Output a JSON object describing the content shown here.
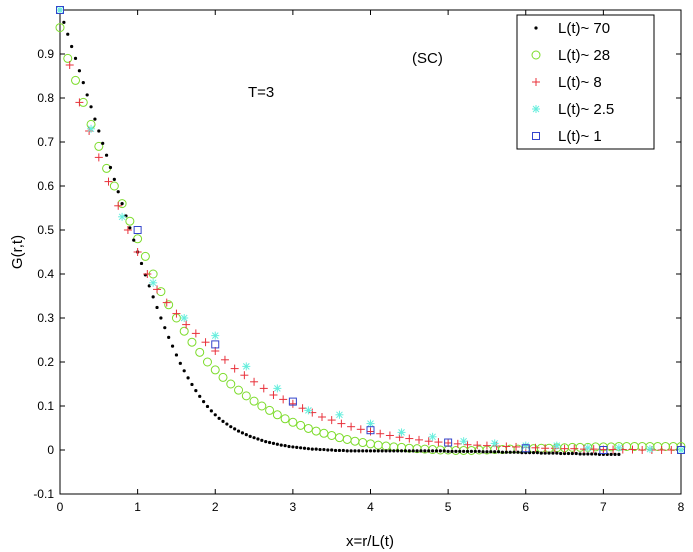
{
  "chart_data": {
    "type": "scatter",
    "xlabel": "x=r/L(t)",
    "ylabel": "G(r,t)",
    "xlim": [
      0,
      8
    ],
    "ylim": [
      -0.1,
      1
    ],
    "xticks": [
      "0",
      "1",
      "2",
      "3",
      "4",
      "5",
      "6",
      "7",
      "8"
    ],
    "yticks": [
      "-0.1",
      "0",
      "0.1",
      "0.2",
      "0.3",
      "0.4",
      "0.5",
      "0.6",
      "0.7",
      "0.8",
      "0.9"
    ],
    "annotations": [
      "T=3",
      "(SC)"
    ],
    "legend_position": "top-right",
    "series": [
      {
        "name": "L(t)~ 70",
        "marker": "dot",
        "color": "#000000",
        "x": [
          0,
          0.05,
          0.1,
          0.15,
          0.2,
          0.25,
          0.3,
          0.35,
          0.4,
          0.45,
          0.5,
          0.55,
          0.6,
          0.65,
          0.7,
          0.75,
          0.8,
          0.85,
          0.9,
          0.95,
          1,
          1.05,
          1.1,
          1.15,
          1.2,
          1.25,
          1.3,
          1.35,
          1.4,
          1.45,
          1.5,
          1.55,
          1.6,
          1.65,
          1.7,
          1.75,
          1.8,
          1.85,
          1.9,
          1.95,
          2,
          2.05,
          2.1,
          2.15,
          2.2,
          2.25,
          2.3,
          2.35,
          2.4,
          2.45,
          2.5,
          2.55,
          2.6,
          2.65,
          2.7,
          2.75,
          2.8,
          2.85,
          2.9,
          2.95,
          3,
          3.05,
          3.1,
          3.15,
          3.2,
          3.25,
          3.3,
          3.35,
          3.4,
          3.45,
          3.5,
          3.55,
          3.6,
          3.65,
          3.7,
          3.75,
          3.8,
          3.85,
          3.9,
          3.95,
          4,
          4.05,
          4.1,
          4.15,
          4.2,
          4.25,
          4.3,
          4.35,
          4.4,
          4.45,
          4.5,
          4.55,
          4.6,
          4.65,
          4.7,
          4.75,
          4.8,
          4.85,
          4.9,
          4.95,
          5,
          5.05,
          5.1,
          5.15,
          5.2,
          5.25,
          5.3,
          5.35,
          5.4,
          5.45,
          5.5,
          5.55,
          5.6,
          5.65,
          5.7,
          5.75,
          5.8,
          5.85,
          5.9,
          5.95,
          6,
          6.05,
          6.1,
          6.15,
          6.2,
          6.25,
          6.3,
          6.35,
          6.4,
          6.45,
          6.5,
          6.55,
          6.6,
          6.65,
          6.7,
          6.75,
          6.8,
          6.85,
          6.9,
          6.95,
          7,
          7.05,
          7.1,
          7.15,
          7.2
        ],
        "y": [
          1,
          0.972,
          0.945,
          0.917,
          0.89,
          0.862,
          0.835,
          0.807,
          0.78,
          0.752,
          0.725,
          0.697,
          0.67,
          0.642,
          0.615,
          0.587,
          0.56,
          0.532,
          0.505,
          0.477,
          0.45,
          0.424,
          0.398,
          0.373,
          0.348,
          0.324,
          0.3,
          0.278,
          0.256,
          0.236,
          0.216,
          0.197,
          0.18,
          0.164,
          0.149,
          0.135,
          0.122,
          0.11,
          0.099,
          0.089,
          0.08,
          0.072,
          0.065,
          0.059,
          0.053,
          0.048,
          0.043,
          0.039,
          0.035,
          0.031,
          0.028,
          0.025,
          0.022,
          0.019,
          0.017,
          0.015,
          0.013,
          0.011,
          0.01,
          0.008,
          0.007,
          0.006,
          0.005,
          0.004,
          0.003,
          0.002,
          0.002,
          0.001,
          0.001,
          0,
          0,
          -0.001,
          -0.001,
          -0.001,
          -0.002,
          -0.002,
          -0.002,
          -0.002,
          -0.002,
          -0.002,
          -0.002,
          -0.002,
          -0.002,
          -0.002,
          -0.002,
          -0.002,
          -0.002,
          -0.002,
          -0.002,
          -0.002,
          -0.002,
          -0.002,
          -0.002,
          -0.002,
          -0.002,
          -0.002,
          -0.002,
          -0.002,
          -0.002,
          -0.002,
          -0.003,
          -0.003,
          -0.003,
          -0.003,
          -0.003,
          -0.003,
          -0.003,
          -0.003,
          -0.003,
          -0.004,
          -0.004,
          -0.004,
          -0.004,
          -0.004,
          -0.005,
          -0.005,
          -0.005,
          -0.005,
          -0.005,
          -0.006,
          -0.006,
          -0.006,
          -0.006,
          -0.006,
          -0.007,
          -0.007,
          -0.007,
          -0.007,
          -0.007,
          -0.008,
          -0.008,
          -0.008,
          -0.008,
          -0.008,
          -0.009,
          -0.009,
          -0.009,
          -0.009,
          -0.009,
          -0.01,
          -0.01,
          -0.01,
          -0.01,
          -0.01,
          -0.01
        ]
      },
      {
        "name": "L(t)~ 28",
        "marker": "circle",
        "color": "#7cdc2a",
        "x": [
          0,
          0.1,
          0.2,
          0.3,
          0.4,
          0.5,
          0.6,
          0.7,
          0.8,
          0.9,
          1,
          1.1,
          1.2,
          1.3,
          1.4,
          1.5,
          1.6,
          1.7,
          1.8,
          1.9,
          2,
          2.1,
          2.2,
          2.3,
          2.4,
          2.5,
          2.6,
          2.7,
          2.8,
          2.9,
          3,
          3.1,
          3.2,
          3.3,
          3.4,
          3.5,
          3.6,
          3.7,
          3.8,
          3.9,
          4,
          4.1,
          4.2,
          4.3,
          4.4,
          4.5,
          4.6,
          4.7,
          4.8,
          4.9,
          5,
          5.1,
          5.2,
          5.3,
          5.4,
          5.5,
          5.6,
          5.7,
          5.8,
          5.9,
          6,
          6.1,
          6.2,
          6.3,
          6.4,
          6.5,
          6.6,
          6.7,
          6.8,
          6.9,
          7,
          7.1,
          7.2,
          7.3,
          7.4,
          7.5,
          7.6,
          7.7,
          7.8,
          7.9,
          8
        ],
        "y": [
          0.96,
          0.89,
          0.84,
          0.79,
          0.74,
          0.69,
          0.64,
          0.6,
          0.56,
          0.52,
          0.48,
          0.44,
          0.4,
          0.36,
          0.33,
          0.3,
          0.27,
          0.245,
          0.222,
          0.2,
          0.182,
          0.165,
          0.15,
          0.136,
          0.123,
          0.111,
          0.1,
          0.09,
          0.08,
          0.071,
          0.063,
          0.056,
          0.049,
          0.043,
          0.038,
          0.033,
          0.028,
          0.024,
          0.02,
          0.017,
          0.014,
          0.011,
          0.009,
          0.007,
          0.006,
          0.004,
          0.003,
          0.002,
          0.001,
          0,
          0,
          -0.001,
          -0.001,
          -0.001,
          0,
          0,
          0.001,
          0.001,
          0.002,
          0.002,
          0.003,
          0.003,
          0.004,
          0.004,
          0.005,
          0.005,
          0.006,
          0.006,
          0.006,
          0.007,
          0.007,
          0.007,
          0.008,
          0.008,
          0.008,
          0.008,
          0.008,
          0.008,
          0.008,
          0.008,
          0.008
        ]
      },
      {
        "name": "L(t)~ 8",
        "marker": "plus",
        "color": "#e8303a",
        "x": [
          0,
          0.125,
          0.25,
          0.375,
          0.5,
          0.625,
          0.75,
          0.875,
          1,
          1.125,
          1.25,
          1.375,
          1.5,
          1.625,
          1.75,
          1.875,
          2,
          2.125,
          2.25,
          2.375,
          2.5,
          2.625,
          2.75,
          2.875,
          3,
          3.125,
          3.25,
          3.375,
          3.5,
          3.625,
          3.75,
          3.875,
          4,
          4.125,
          4.25,
          4.375,
          4.5,
          4.625,
          4.75,
          4.875,
          5,
          5.125,
          5.25,
          5.375,
          5.5,
          5.625,
          5.75,
          5.875,
          6,
          6.125,
          6.25,
          6.375,
          6.5,
          6.625,
          6.75,
          6.875,
          7,
          7.125,
          7.25,
          7.375,
          7.5,
          7.625,
          7.75,
          7.875,
          8
        ],
        "y": [
          1,
          0.875,
          0.79,
          0.725,
          0.665,
          0.61,
          0.555,
          0.5,
          0.45,
          0.4,
          0.365,
          0.335,
          0.31,
          0.285,
          0.265,
          0.245,
          0.225,
          0.205,
          0.185,
          0.17,
          0.155,
          0.14,
          0.125,
          0.115,
          0.105,
          0.095,
          0.085,
          0.075,
          0.068,
          0.06,
          0.053,
          0.047,
          0.042,
          0.037,
          0.033,
          0.029,
          0.026,
          0.023,
          0.02,
          0.018,
          0.016,
          0.014,
          0.012,
          0.011,
          0.01,
          0.009,
          0.008,
          0.007,
          0.006,
          0.005,
          0.004,
          0.004,
          0.003,
          0.003,
          0.002,
          0.002,
          0.001,
          0.001,
          0.001,
          0.001,
          0,
          0,
          0,
          0,
          0
        ]
      },
      {
        "name": "L(t)~ 2.5",
        "marker": "star",
        "color": "#66eedd",
        "x": [
          0,
          0.4,
          0.8,
          1.2,
          1.6,
          2,
          2.4,
          2.8,
          3.2,
          3.6,
          4,
          4.4,
          4.8,
          5.2,
          5.6,
          6,
          6.4,
          6.8,
          7.2,
          7.6,
          8
        ],
        "y": [
          1,
          0.73,
          0.53,
          0.38,
          0.3,
          0.26,
          0.19,
          0.14,
          0.09,
          0.08,
          0.06,
          0.04,
          0.03,
          0.02,
          0.015,
          0.01,
          0.01,
          0.005,
          0.005,
          0.002,
          0
        ]
      },
      {
        "name": "L(t)~ 1",
        "marker": "square",
        "color": "#3344cc",
        "x": [
          0,
          1,
          2,
          3,
          4,
          5,
          6,
          7,
          8
        ],
        "y": [
          1,
          0.5,
          0.24,
          0.11,
          0.045,
          0.017,
          0.004,
          0,
          0
        ]
      }
    ]
  }
}
